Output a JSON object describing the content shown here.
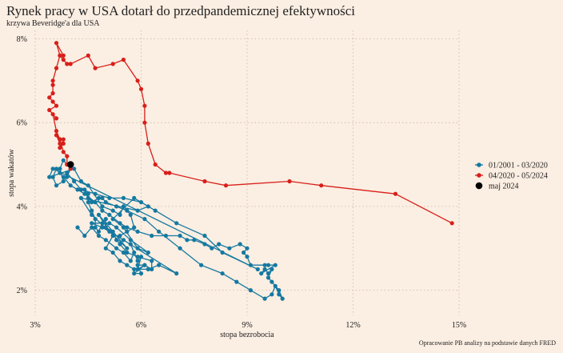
{
  "title": "Rynek pracy w USA dotarł do przedpandemicznej efektywności",
  "subtitle": "krzywa Beveridge'a dla USA",
  "caption": "Opracowanie PB analizy na podstawie danych FRED",
  "chart_data": {
    "type": "scatter",
    "xlabel": "stopa bezrobocia",
    "ylabel": "stopa wakatów",
    "xlim": [
      3,
      15
    ],
    "ylim": [
      1.4,
      8.2
    ],
    "x_ticks": [
      3,
      6,
      9,
      12,
      15
    ],
    "x_tick_labels": [
      "3%",
      "6%",
      "9%",
      "12%",
      "15%"
    ],
    "y_ticks": [
      2,
      4,
      6,
      8
    ],
    "y_tick_labels": [
      "2%",
      "4%",
      "6%",
      "8%"
    ],
    "grid": true,
    "legend_position": "right",
    "series": [
      {
        "name": "01/2001 - 03/2020",
        "color": "#1479a1",
        "connected": true,
        "points": [
          [
            4.2,
            3.5
          ],
          [
            4.4,
            3.3
          ],
          [
            4.6,
            3.5
          ],
          [
            4.8,
            3.3
          ],
          [
            5.0,
            3.2
          ],
          [
            5.3,
            3.0
          ],
          [
            5.5,
            2.9
          ],
          [
            5.7,
            2.7
          ],
          [
            5.8,
            2.9
          ],
          [
            5.7,
            3.1
          ],
          [
            5.9,
            2.7
          ],
          [
            6.0,
            2.8
          ],
          [
            5.9,
            2.5
          ],
          [
            6.1,
            2.6
          ],
          [
            5.8,
            2.4
          ],
          [
            6.0,
            2.4
          ],
          [
            5.9,
            2.6
          ],
          [
            6.1,
            2.6
          ],
          [
            6.3,
            2.5
          ],
          [
            6.3,
            2.7
          ],
          [
            5.9,
            2.8
          ],
          [
            5.6,
            2.9
          ],
          [
            5.4,
            3.1
          ],
          [
            5.3,
            3.2
          ],
          [
            5.2,
            3.4
          ],
          [
            5.0,
            3.5
          ],
          [
            5.0,
            3.7
          ],
          [
            4.9,
            3.6
          ],
          [
            4.8,
            3.4
          ],
          [
            4.7,
            3.5
          ],
          [
            4.7,
            3.7
          ],
          [
            4.6,
            3.9
          ],
          [
            4.5,
            4.1
          ],
          [
            4.5,
            4.3
          ],
          [
            4.5,
            4.2
          ],
          [
            4.4,
            4.4
          ],
          [
            4.6,
            4.1
          ],
          [
            4.8,
            4.2
          ],
          [
            4.9,
            4.2
          ],
          [
            5.0,
            4.1
          ],
          [
            5.3,
            4.0
          ],
          [
            5.6,
            3.9
          ],
          [
            6.1,
            3.7
          ],
          [
            6.5,
            3.4
          ],
          [
            7.1,
            3.0
          ],
          [
            7.7,
            2.6
          ],
          [
            8.3,
            2.4
          ],
          [
            8.7,
            2.2
          ],
          [
            9.1,
            2.0
          ],
          [
            9.5,
            1.8
          ],
          [
            9.7,
            1.9
          ],
          [
            9.8,
            2.1
          ],
          [
            9.9,
            1.9
          ],
          [
            10.0,
            1.8
          ],
          [
            9.9,
            2.0
          ],
          [
            9.7,
            2.2
          ],
          [
            9.6,
            2.3
          ],
          [
            9.7,
            2.5
          ],
          [
            9.6,
            2.4
          ],
          [
            9.5,
            2.5
          ],
          [
            9.4,
            2.4
          ],
          [
            9.8,
            2.6
          ],
          [
            9.6,
            2.6
          ],
          [
            9.5,
            2.6
          ],
          [
            9.1,
            2.6
          ],
          [
            9.0,
            2.8
          ],
          [
            8.9,
            2.9
          ],
          [
            9.0,
            3.0
          ],
          [
            8.8,
            3.1
          ],
          [
            8.5,
            3.0
          ],
          [
            8.2,
            3.1
          ],
          [
            8.0,
            3.0
          ],
          [
            7.8,
            3.1
          ],
          [
            7.5,
            3.2
          ],
          [
            7.3,
            3.2
          ],
          [
            7.1,
            3.3
          ],
          [
            6.7,
            3.3
          ],
          [
            6.3,
            3.3
          ],
          [
            5.9,
            3.4
          ],
          [
            5.6,
            3.5
          ],
          [
            5.4,
            3.6
          ],
          [
            5.1,
            3.8
          ],
          [
            4.9,
            3.9
          ],
          [
            4.7,
            4.1
          ],
          [
            4.4,
            4.3
          ],
          [
            4.2,
            4.4
          ],
          [
            4.0,
            4.5
          ],
          [
            3.8,
            4.7
          ],
          [
            3.7,
            4.8
          ],
          [
            3.6,
            4.9
          ],
          [
            3.5,
            4.7
          ],
          [
            3.6,
            4.5
          ],
          [
            3.8,
            4.6
          ],
          [
            3.7,
            4.9
          ],
          [
            3.8,
            5.1
          ],
          [
            3.9,
            5.0
          ],
          [
            4.0,
            4.9
          ],
          [
            3.9,
            4.7
          ],
          [
            3.9,
            4.8
          ],
          [
            4.1,
            4.6
          ],
          [
            4.3,
            4.4
          ],
          [
            4.7,
            4.3
          ],
          [
            5.1,
            4.2
          ],
          [
            5.5,
            4.2
          ],
          [
            6.0,
            4.1
          ],
          [
            6.4,
            3.9
          ],
          [
            7.0,
            3.6
          ],
          [
            7.8,
            3.3
          ],
          [
            8.3,
            2.9
          ],
          [
            9.3,
            2.5
          ],
          [
            3.5,
            4.9
          ],
          [
            3.4,
            4.7
          ],
          [
            4.1,
            4.9
          ],
          [
            4.3,
            4.6
          ],
          [
            4.5,
            4.5
          ],
          [
            4.9,
            4.0
          ],
          [
            5.2,
            3.9
          ],
          [
            5.4,
            3.8
          ],
          [
            5.5,
            4.0
          ],
          [
            5.7,
            3.8
          ],
          [
            5.8,
            3.5
          ],
          [
            5.6,
            3.4
          ],
          [
            5.4,
            3.3
          ],
          [
            5.2,
            3.3
          ],
          [
            5.0,
            3.0
          ],
          [
            5.2,
            2.9
          ],
          [
            5.4,
            2.7
          ],
          [
            5.6,
            2.6
          ],
          [
            5.8,
            2.5
          ],
          [
            6.2,
            2.5
          ],
          [
            6.5,
            2.6
          ],
          [
            7.0,
            2.4
          ],
          [
            5.5,
            3.2
          ],
          [
            4.9,
            3.5
          ],
          [
            4.6,
            3.6
          ],
          [
            5.1,
            3.6
          ],
          [
            5.3,
            3.5
          ],
          [
            5.7,
            3.2
          ],
          [
            6.2,
            2.9
          ],
          [
            5.9,
            3.0
          ],
          [
            5.5,
            3.5
          ],
          [
            5.2,
            3.7
          ],
          [
            5.8,
            4.2
          ],
          [
            6.2,
            4.0
          ],
          [
            5.9,
            3.9
          ],
          [
            4.3,
            4.2
          ],
          [
            4.6,
            3.8
          ],
          [
            5.6,
            3.0
          ],
          [
            4.8,
            3.8
          ],
          [
            5.1,
            3.4
          ]
        ]
      },
      {
        "name": "04/2020 - 05/2024",
        "color": "#d81f1a",
        "connected": true,
        "points": [
          [
            14.8,
            3.6
          ],
          [
            13.2,
            4.3
          ],
          [
            11.1,
            4.5
          ],
          [
            10.2,
            4.6
          ],
          [
            8.4,
            4.5
          ],
          [
            7.8,
            4.6
          ],
          [
            6.8,
            4.8
          ],
          [
            6.7,
            4.8
          ],
          [
            6.4,
            5.0
          ],
          [
            6.2,
            5.5
          ],
          [
            6.1,
            6.0
          ],
          [
            6.1,
            6.4
          ],
          [
            6.0,
            6.8
          ],
          [
            5.9,
            7.0
          ],
          [
            5.5,
            7.5
          ],
          [
            5.2,
            7.4
          ],
          [
            4.7,
            7.3
          ],
          [
            4.5,
            7.6
          ],
          [
            4.0,
            7.4
          ],
          [
            3.9,
            7.4
          ],
          [
            3.8,
            7.5
          ],
          [
            3.7,
            7.6
          ],
          [
            3.8,
            7.6
          ],
          [
            3.6,
            7.9
          ],
          [
            3.7,
            7.6
          ],
          [
            3.6,
            7.3
          ],
          [
            3.5,
            7.0
          ],
          [
            3.5,
            6.9
          ],
          [
            3.5,
            6.7
          ],
          [
            3.4,
            6.6
          ],
          [
            3.5,
            6.5
          ],
          [
            3.6,
            6.4
          ],
          [
            3.4,
            6.3
          ],
          [
            3.6,
            6.1
          ],
          [
            3.5,
            6.2
          ],
          [
            3.6,
            5.8
          ],
          [
            3.7,
            5.6
          ],
          [
            3.6,
            5.7
          ],
          [
            3.7,
            5.5
          ],
          [
            3.8,
            5.5
          ],
          [
            3.7,
            5.4
          ],
          [
            3.8,
            5.6
          ],
          [
            3.7,
            5.6
          ],
          [
            3.8,
            5.3
          ],
          [
            3.9,
            5.2
          ],
          [
            3.9,
            5.0
          ],
          [
            4.0,
            4.9
          ],
          [
            4.0,
            5.0
          ]
        ]
      },
      {
        "name": "maj 2024",
        "color": "#000000",
        "connected": false,
        "points": [
          [
            4.0,
            5.0
          ]
        ]
      }
    ]
  }
}
